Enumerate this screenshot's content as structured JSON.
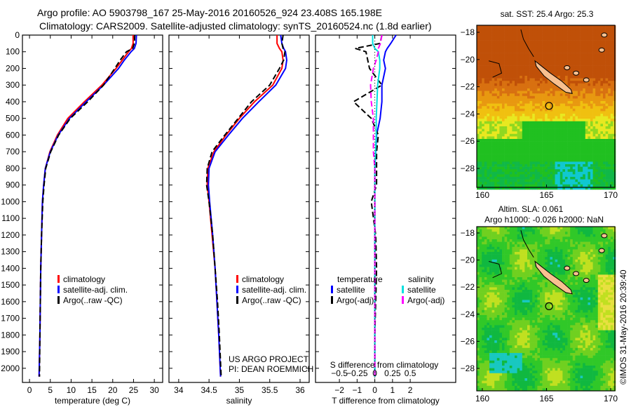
{
  "title_line1": "Argo profile: AO 5903798_167 25-May-2016 20160526_924 23.408S 165.198E",
  "title_line2": "Climatology: CARS2009. Satellite-adjusted climatology: synTS_20160524.nc (1.8d earlier)",
  "copyright": "©IMOS 31-May-2016 20:39:40",
  "colors": {
    "climatology": "#ff0000",
    "satellite": "#0000ff",
    "argo": "#000000",
    "sal_satellite": "#00e0e0",
    "sal_argo": "#ff00ff"
  },
  "chart_data": [
    {
      "type": "line",
      "name": "temperature",
      "xlabel": "temperature (deg C)",
      "xlim": [
        -1.7,
        32
      ],
      "ylim": [
        2085,
        0
      ],
      "xticks": [
        0,
        5,
        10,
        15,
        20,
        25,
        30
      ],
      "yticks": [
        0,
        100,
        200,
        300,
        400,
        500,
        600,
        700,
        800,
        900,
        1000,
        1100,
        1200,
        1300,
        1400,
        1500,
        1600,
        1700,
        1800,
        1900,
        2000
      ],
      "depth": [
        0,
        50,
        80,
        100,
        150,
        200,
        300,
        400,
        500,
        600,
        700,
        800,
        900,
        1000,
        1200,
        1400,
        1600,
        1800,
        2050
      ],
      "legend": [
        "climatology",
        "satellite-adj. clim.",
        "Argo(..raw -QC)"
      ],
      "series": [
        {
          "name": "climatology",
          "values": [
            24.9,
            24.9,
            24.5,
            23.8,
            22.3,
            20.8,
            17.4,
            13.2,
            9.2,
            6.7,
            4.9,
            3.8,
            3.4,
            3.1,
            2.9,
            2.7,
            2.6,
            2.5,
            2.3
          ]
        },
        {
          "name": "satellite-adj. clim.",
          "values": [
            25.7,
            25.6,
            25.2,
            24.4,
            22.8,
            21.4,
            17.8,
            13.6,
            9.6,
            6.9,
            5.0,
            3.8,
            3.4,
            3.1,
            2.9,
            2.7,
            2.6,
            2.5,
            2.3
          ]
        },
        {
          "name": "Argo(..raw -QC)",
          "values": [
            25.3,
            25.2,
            24.8,
            23.3,
            21.8,
            20.5,
            17.8,
            14.0,
            9.8,
            7.0,
            5.1,
            3.9,
            3.5,
            3.2,
            2.9,
            2.7,
            2.6,
            2.5,
            2.4
          ]
        }
      ]
    },
    {
      "type": "line",
      "name": "salinity",
      "xlabel": "salinity",
      "xlim": [
        33.84,
        36.15
      ],
      "ylim": [
        2085,
        0
      ],
      "xticks": [
        34,
        34.5,
        35,
        35.5,
        36
      ],
      "depth": [
        0,
        50,
        80,
        100,
        150,
        200,
        300,
        400,
        500,
        600,
        700,
        800,
        900,
        1000,
        1200,
        1400,
        1600,
        1800,
        2050
      ],
      "legend": [
        "climatology",
        "satellite-adj. clim.",
        "Argo(..raw -QC)"
      ],
      "annotation": [
        "US ARGO PROJECT",
        "PI: DEAN ROEMMICH"
      ],
      "series": [
        {
          "name": "climatology",
          "values": [
            35.62,
            35.62,
            35.66,
            35.7,
            35.72,
            35.7,
            35.55,
            35.25,
            35.0,
            34.78,
            34.58,
            34.48,
            34.47,
            34.5,
            34.55,
            34.6,
            34.63,
            34.66,
            34.69
          ]
        },
        {
          "name": "satellite-adj. clim.",
          "values": [
            35.68,
            35.7,
            35.73,
            35.76,
            35.78,
            35.76,
            35.6,
            35.32,
            35.05,
            34.82,
            34.6,
            34.5,
            34.49,
            34.51,
            34.56,
            34.6,
            34.63,
            34.66,
            34.69
          ]
        },
        {
          "name": "Argo(..raw -QC)",
          "values": [
            35.72,
            35.7,
            35.72,
            35.75,
            35.73,
            35.66,
            35.5,
            35.2,
            34.98,
            34.76,
            34.55,
            34.47,
            34.46,
            34.5,
            34.56,
            34.6,
            34.64,
            34.67,
            34.7
          ]
        }
      ]
    },
    {
      "type": "line",
      "name": "difference",
      "xlabel": "T difference from climatology",
      "x2label": "S difference from climatology",
      "xlim": [
        -3.35,
        4.57
      ],
      "ylim": [
        2085,
        0
      ],
      "xticks": [
        -2,
        -1,
        0,
        1,
        2
      ],
      "x2ticks": [
        -0.5,
        -0.25,
        0,
        0.25,
        0.5
      ],
      "depth": [
        0,
        50,
        80,
        100,
        150,
        200,
        300,
        400,
        500,
        600,
        700,
        800,
        900,
        1000,
        1200,
        1400,
        1600,
        1800,
        2050
      ],
      "legend_titles": [
        "temperature",
        "salinity"
      ],
      "legend": [
        "satellite",
        "Argo(-adj)",
        "satellite",
        "Argo(-adj)"
      ],
      "series": [
        {
          "name": "T satellite",
          "values": [
            1.2,
            0.9,
            0.7,
            0.6,
            0.5,
            0.6,
            0.4,
            0.4,
            0.3,
            0.1,
            0.05,
            0,
            0,
            0,
            0,
            0,
            0,
            0,
            0
          ]
        },
        {
          "name": "T Argo(-adj)",
          "values": [
            0.4,
            0.3,
            -1.1,
            -0.5,
            -0.4,
            -0.3,
            0.4,
            -1.2,
            -0.2,
            0.2,
            0.1,
            0.1,
            0.1,
            -0.2,
            0.05,
            0.1,
            0.05,
            0,
            0
          ]
        },
        {
          "name": "S satellite",
          "values": [
            -0.03,
            -0.03,
            0.0,
            0.05,
            0.07,
            0.07,
            0.04,
            0.03,
            0.02,
            0.02,
            0.01,
            0.0,
            0.0,
            0.0,
            0.0,
            0.0,
            0.0,
            0.0,
            0.0
          ]
        },
        {
          "name": "S Argo(-adj)",
          "values": [
            0.1,
            0.08,
            0.05,
            0.05,
            0.02,
            -0.02,
            -0.06,
            -0.05,
            -0.02,
            -0.02,
            -0.02,
            0.0,
            0.0,
            0.0,
            0.0,
            0.0,
            0.0,
            0.0,
            0.0
          ]
        }
      ]
    },
    {
      "type": "heatmap",
      "name": "sst-map",
      "title": "sat. SST: 25.4  Argo: 25.3",
      "xticks": [
        160,
        165,
        170
      ],
      "yticks": [
        -18,
        -20,
        -22,
        -24,
        -26,
        -28
      ],
      "xlim": [
        159.7,
        170.7
      ],
      "ylim": [
        -29.4,
        -17.4
      ],
      "argo_position": [
        165.198,
        -23.408
      ]
    },
    {
      "type": "heatmap",
      "name": "sla-map",
      "title": "Altim. SLA: 0.061",
      "subtitle": "Argo h1000: -0.026 h2000: NaN",
      "xticks": [
        160,
        165,
        170
      ],
      "yticks": [
        -18,
        -20,
        -22,
        -24,
        -26,
        -28
      ],
      "xlim": [
        159.7,
        170.7
      ],
      "ylim": [
        -29.4,
        -17.4
      ],
      "argo_position": [
        165.198,
        -23.408
      ]
    }
  ]
}
